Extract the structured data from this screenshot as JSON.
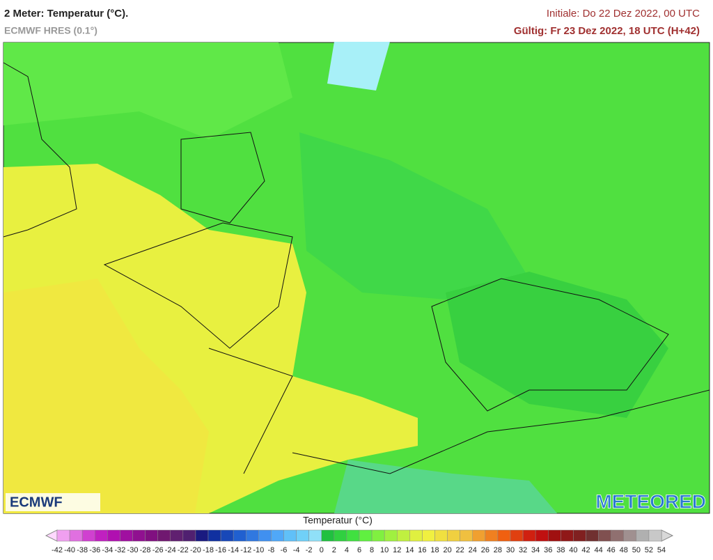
{
  "header": {
    "title": "2 Meter: Temperatur (°C).",
    "subtitle": "ECMWF HRES (0.1°)",
    "init": "Initiale: Do 22 Dez 2022, 00 UTC",
    "valid": "Gültig: Fr 23 Dez 2022, 18 UTC (H+42)"
  },
  "logos": {
    "left": "ECMWF",
    "right": "METEORED"
  },
  "legend": {
    "title": "Temperatur (°C)",
    "ticks": [
      -42,
      -40,
      -38,
      -36,
      -34,
      -32,
      -30,
      -28,
      -26,
      -24,
      -22,
      -20,
      -18,
      -16,
      -14,
      -12,
      -10,
      -8,
      -6,
      -4,
      -2,
      0,
      2,
      4,
      6,
      8,
      10,
      12,
      14,
      16,
      18,
      20,
      22,
      24,
      26,
      28,
      30,
      32,
      34,
      36,
      38,
      40,
      42,
      44,
      46,
      48,
      50,
      52,
      54
    ],
    "colors": [
      "#f0a0f0",
      "#e070e0",
      "#d040d0",
      "#c020c0",
      "#b010b0",
      "#a010a0",
      "#901090",
      "#801080",
      "#701870",
      "#602070",
      "#502070",
      "#1a1a80",
      "#1030a0",
      "#1848b8",
      "#2060d0",
      "#3078e0",
      "#4090f0",
      "#50a8f8",
      "#60c0f8",
      "#70d0f8",
      "#90e0f8",
      "#20c040",
      "#30d040",
      "#40e040",
      "#60f040",
      "#80f040",
      "#a0f040",
      "#c0f040",
      "#e0f040",
      "#f0f040",
      "#f0e040",
      "#f0d040",
      "#f0c040",
      "#f0a030",
      "#f08020",
      "#f06010",
      "#e04010",
      "#d02010",
      "#c01010",
      "#a01010",
      "#901818",
      "#802020",
      "#703030",
      "#805050",
      "#907070",
      "#a09090",
      "#b0b0b0",
      "#c8c8c8"
    ],
    "under_color": "#ffd8ff",
    "over_color": "#d8d8d8"
  }
}
